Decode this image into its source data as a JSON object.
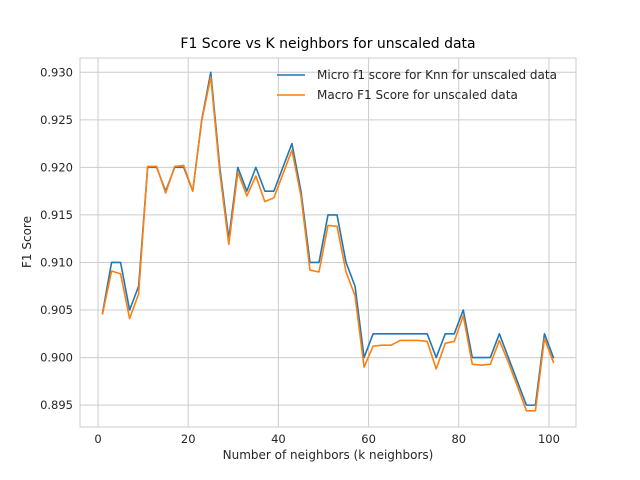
{
  "chart_data": {
    "type": "line",
    "title": "F1 Score vs K neighbors for unscaled data",
    "xlabel": "Number of neighbors (k neighbors)",
    "ylabel": "F1 Score",
    "xlim": [
      -4,
      106
    ],
    "ylim": [
      0.8927,
      0.9315
    ],
    "xticks": [
      0,
      20,
      40,
      60,
      80,
      100
    ],
    "xtick_labels": [
      "0",
      "20",
      "40",
      "60",
      "80",
      "100"
    ],
    "yticks": [
      0.895,
      0.9,
      0.905,
      0.91,
      0.915,
      0.92,
      0.925,
      0.93
    ],
    "ytick_labels": [
      "0.895",
      "0.900",
      "0.905",
      "0.910",
      "0.915",
      "0.920",
      "0.925",
      "0.930"
    ],
    "grid": true,
    "legend_position": "top-right",
    "x": [
      1,
      3,
      5,
      7,
      9,
      11,
      13,
      15,
      17,
      19,
      21,
      23,
      25,
      27,
      29,
      31,
      33,
      35,
      37,
      39,
      41,
      43,
      45,
      47,
      49,
      51,
      53,
      55,
      57,
      59,
      61,
      63,
      65,
      67,
      69,
      71,
      73,
      75,
      77,
      79,
      81,
      83,
      85,
      87,
      89,
      91,
      93,
      95,
      97,
      99,
      101
    ],
    "series": [
      {
        "name": "Micro f1 score for Knn for unscaled data",
        "color": "#1f77b4",
        "values": [
          0.9047,
          0.91,
          0.91,
          0.905,
          0.9075,
          0.92,
          0.92,
          0.9175,
          0.92,
          0.92,
          0.9175,
          0.925,
          0.93,
          0.92,
          0.9125,
          0.92,
          0.9175,
          0.92,
          0.9175,
          0.9175,
          0.92,
          0.9225,
          0.9175,
          0.91,
          0.91,
          0.915,
          0.915,
          0.91,
          0.9075,
          0.9,
          0.9025,
          0.9025,
          0.9025,
          0.9025,
          0.9025,
          0.9025,
          0.9025,
          0.9,
          0.9025,
          0.9025,
          0.905,
          0.9,
          0.9,
          0.9,
          0.9025,
          0.9,
          0.8975,
          0.895,
          0.895,
          0.9025,
          0.9
        ]
      },
      {
        "name": "Macro F1 Score for unscaled data",
        "color": "#ff7f0e",
        "values": [
          0.9046,
          0.9091,
          0.9088,
          0.9041,
          0.9067,
          0.9201,
          0.9201,
          0.9173,
          0.9201,
          0.9202,
          0.9175,
          0.9249,
          0.9295,
          0.9195,
          0.9119,
          0.9195,
          0.917,
          0.9191,
          0.9164,
          0.9168,
          0.9193,
          0.9218,
          0.917,
          0.9092,
          0.909,
          0.9139,
          0.9138,
          0.909,
          0.9065,
          0.899,
          0.9012,
          0.9013,
          0.9013,
          0.9018,
          0.9018,
          0.9018,
          0.9017,
          0.8988,
          0.9015,
          0.9017,
          0.9044,
          0.8993,
          0.8992,
          0.8993,
          0.9018,
          0.8995,
          0.897,
          0.8944,
          0.8944,
          0.902,
          0.8995
        ]
      }
    ]
  }
}
